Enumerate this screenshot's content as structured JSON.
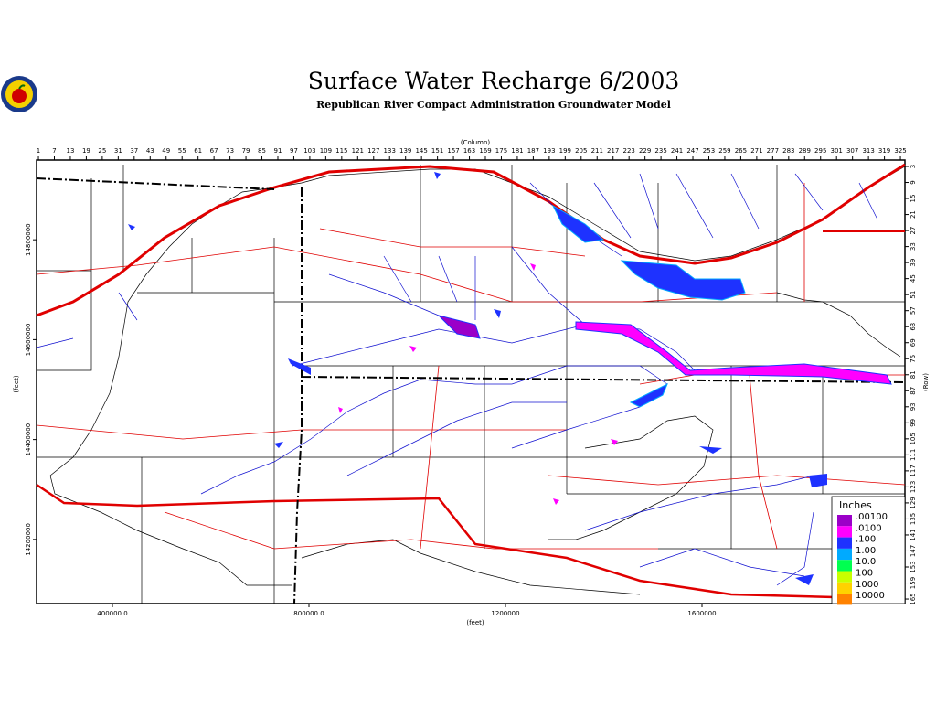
{
  "header": {
    "title": "Surface Water Recharge 6/2003",
    "subtitle": "Republican River Compact Administration Groundwater Model"
  },
  "map": {
    "column_axis": {
      "label": "(Column)",
      "lim": [
        0.3,
        326.7
      ],
      "ticks": [
        1,
        7,
        13,
        19,
        25,
        31,
        37,
        43,
        49,
        55,
        61,
        67,
        73,
        79,
        85,
        91,
        97,
        103,
        109,
        115,
        121,
        127,
        133,
        139,
        145,
        151,
        157,
        163,
        169,
        175,
        181,
        187,
        193,
        199,
        205,
        211,
        217,
        223,
        229,
        235,
        241,
        247,
        253,
        259,
        265,
        271,
        277,
        283,
        289,
        295,
        301,
        307,
        313,
        319,
        325
      ]
    },
    "row_axis": {
      "label": "(Row)",
      "lim": [
        0.6,
        166.7
      ],
      "ticks": [
        3,
        9,
        15,
        21,
        27,
        33,
        39,
        45,
        51,
        57,
        63,
        69,
        75,
        81,
        87,
        93,
        99,
        105,
        111,
        117,
        123,
        129,
        135,
        141,
        147,
        153,
        159,
        165
      ]
    },
    "x_axis": {
      "label": "(feet)",
      "lim": [
        245600,
        2013000
      ],
      "ticks": [
        {
          "value": 400000,
          "label": "400000.0"
        },
        {
          "value": 800000,
          "label": "800000.0"
        },
        1200000,
        1600000
      ]
    },
    "y_axis": {
      "label": "(feet)",
      "lim": [
        14071560,
        14959600
      ],
      "ticks": [
        14800000,
        14600000,
        14400000,
        14200000
      ]
    },
    "legend": {
      "title": "Inches",
      "items": [
        {
          "value": 0.001,
          "label": ".00100",
          "color": "#9b00c8"
        },
        {
          "value": 0.01,
          "label": ".0100",
          "color": "#ff00ff"
        },
        {
          "value": 0.1,
          "label": ".100",
          "color": "#1e32ff"
        },
        {
          "value": 1,
          "label": "1.00",
          "color": "#00aaff"
        },
        {
          "value": 10,
          "label": "10.0",
          "color": "#00ff50"
        },
        {
          "value": 100,
          "label": "100",
          "color": "#c8ff00"
        },
        {
          "value": 1000,
          "label": "1000",
          "color": "#ffd200"
        },
        {
          "value": 10000,
          "label": "10000",
          "color": "#ff8200"
        }
      ]
    }
  }
}
